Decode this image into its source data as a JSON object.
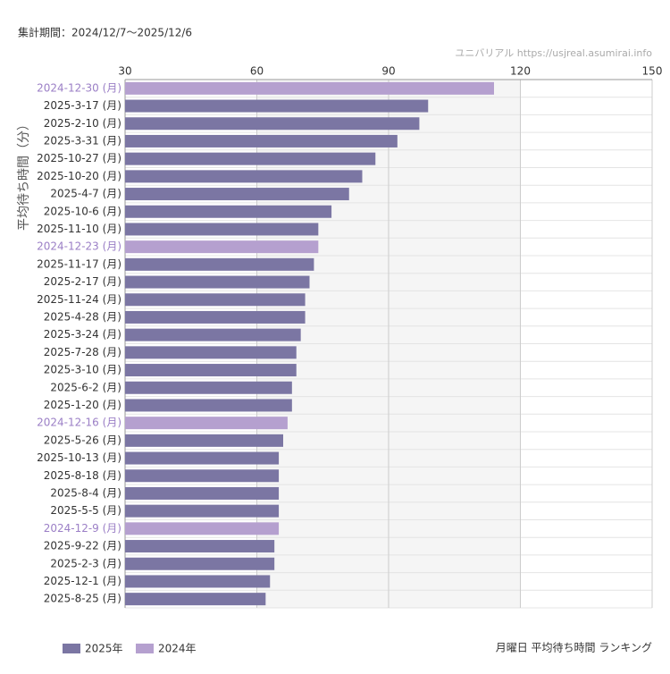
{
  "chart_data": {
    "type": "bar",
    "orientation": "horizontal",
    "title": "月曜日 平均待ち時間 ランキング",
    "subtitle": "集計期間：2024/12/7〜2025/12/6",
    "source": "ユニバリアル  https://usjreal.asumirai.info",
    "y_label": "平均待ち時間（分）",
    "categories": [
      "2024-12-30 (月)",
      "2025-3-17 (月)",
      "2025-2-10 (月)",
      "2025-3-31 (月)",
      "2025-10-27 (月)",
      "2025-10-20 (月)",
      "2025-4-7 (月)",
      "2025-10-6 (月)",
      "2025-11-10 (月)",
      "2024-12-23 (月)",
      "2025-11-17 (月)",
      "2025-2-17 (月)",
      "2025-11-24 (月)",
      "2025-4-28 (月)",
      "2025-3-24 (月)",
      "2025-7-28 (月)",
      "2025-3-10 (月)",
      "2025-6-2 (月)",
      "2025-1-20 (月)",
      "2024-12-16 (月)",
      "2025-5-26 (月)",
      "2025-10-13 (月)",
      "2025-8-18 (月)",
      "2025-8-4 (月)",
      "2025-5-5 (月)",
      "2024-12-9 (月)",
      "2025-9-22 (月)",
      "2025-2-3 (月)",
      "2025-12-1 (月)",
      "2025-8-25 (月)"
    ],
    "series": [
      {
        "name": "2025年",
        "color": "#7b76a3",
        "label_color": "#333333",
        "values": [
          null,
          99,
          97,
          92,
          87,
          84,
          81,
          77,
          74,
          null,
          73,
          72,
          71,
          71,
          70,
          69,
          69,
          68,
          68,
          null,
          66,
          65,
          65,
          65,
          65,
          null,
          64,
          64,
          63,
          62
        ]
      },
      {
        "name": "2024年",
        "color": "#b5a0cf",
        "label_color": "#9b7fc6",
        "values": [
          114,
          null,
          null,
          null,
          null,
          null,
          null,
          null,
          null,
          74,
          null,
          null,
          null,
          null,
          null,
          null,
          null,
          null,
          null,
          67,
          null,
          null,
          null,
          null,
          null,
          65,
          null,
          null,
          null,
          null
        ]
      }
    ],
    "xlim": [
      30,
      150
    ],
    "xticks": [
      30,
      60,
      90,
      120,
      150
    ],
    "grid": true,
    "legend": "bottom-left"
  }
}
